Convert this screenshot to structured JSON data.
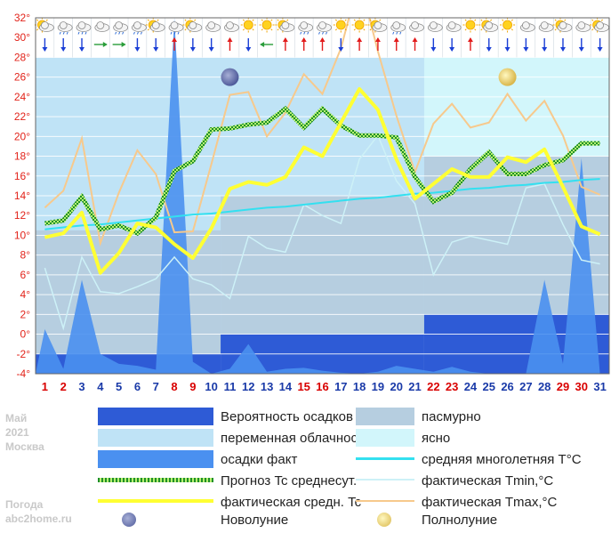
{
  "side": {
    "month": "Май",
    "year": "2021",
    "city": "Москва",
    "site_line1": "Погода",
    "site_line2": "abc2home.ru"
  },
  "colors": {
    "precip_prob": "#2e5bd6",
    "variable_cloud": "#bfe3f6",
    "precip_fact": "#4a90f0",
    "overcast": "#b6cee0",
    "clear": "#d2f6fb",
    "normal_t": "#33e0f0",
    "forecast_t": "#1f8f2a",
    "tmin_fact": "#cdf1f7",
    "tavg_fact": "#ffff33",
    "tmax_fact": "#f7c98c",
    "weekday": "#1a3aa8",
    "weekend": "#d90000"
  },
  "chart_data": {
    "type": "line",
    "ylim": [
      -4,
      32
    ],
    "yticks": [
      "-4°",
      "-2°",
      "0°",
      "2°",
      "4°",
      "6°",
      "8°",
      "10°",
      "12°",
      "14°",
      "16°",
      "18°",
      "20°",
      "22°",
      "24°",
      "26°",
      "28°",
      "30°",
      "32°"
    ],
    "days": [
      "1",
      "2",
      "3",
      "4",
      "5",
      "6",
      "7",
      "8",
      "9",
      "10",
      "11",
      "12",
      "13",
      "14",
      "15",
      "16",
      "17",
      "18",
      "19",
      "20",
      "21",
      "22",
      "23",
      "24",
      "25",
      "26",
      "27",
      "28",
      "29",
      "30",
      "31"
    ],
    "weekend_days": [
      1,
      2,
      8,
      9,
      15,
      16,
      22,
      23,
      29,
      30
    ],
    "sky_bands": [
      {
        "from": 0.5,
        "to": 10.5,
        "top": 28,
        "bottom": -2
      },
      {
        "from": 10.5,
        "to": 21.5,
        "top": 28,
        "bottom": 0
      },
      {
        "from": 21.5,
        "to": 31.5,
        "top": 28,
        "bottom": 2
      }
    ],
    "overcast_zones": [
      {
        "from": 0.5,
        "to": 10.5,
        "top": 10.5,
        "bottom": -2
      },
      {
        "from": 10.5,
        "to": 21.5,
        "top": 14,
        "bottom": 0
      },
      {
        "from": 21.5,
        "to": 31.5,
        "top": 18,
        "bottom": 2
      }
    ],
    "clear_zone": {
      "from": 21.5,
      "to": 31.5,
      "top": 28,
      "bottom": 18
    },
    "precip_prob_steps": [
      {
        "from": 0.5,
        "to": 10.5,
        "top": -2
      },
      {
        "from": 10.5,
        "to": 21.5,
        "top": 0
      },
      {
        "from": 21.5,
        "to": 31.5,
        "top": 2
      }
    ],
    "precip_fact": [
      0.5,
      -3.5,
      5.5,
      -2,
      -3,
      -3.2,
      -3.6,
      35,
      -2.8,
      -4,
      -3.5,
      -1,
      -3.8,
      -3.5,
      -3.4,
      -3.7,
      -3.9,
      -4,
      -3.8,
      -3.2,
      -3.5,
      -3.8,
      -3.3,
      -3.8,
      -4,
      -4,
      -4,
      5.5,
      -3,
      17.8,
      -4
    ],
    "series": [
      {
        "name": "Прогноз Tc среднесут.",
        "key": "forecast",
        "values": [
          11.2,
          11.5,
          13.9,
          10.6,
          11,
          10.2,
          11.8,
          16.5,
          17.5,
          20.7,
          20.8,
          21.2,
          21.4,
          22.8,
          20.9,
          22.8,
          21.1,
          20.1,
          20.1,
          19.9,
          15.9,
          13.4,
          14.3,
          16.7,
          18.4,
          16.2,
          16.2,
          17.1,
          17.6,
          19.3,
          19.3
        ]
      },
      {
        "name": "фактическая средн. Tc",
        "key": "tavg",
        "values": [
          9.8,
          10.2,
          12.3,
          6.2,
          8.2,
          11.2,
          10.8,
          9.1,
          7.7,
          10.7,
          14.7,
          15.4,
          15.1,
          15.9,
          18.9,
          18,
          21.4,
          24.8,
          22.7,
          17.7,
          13.7,
          15.2,
          16.7,
          15.9,
          15.9,
          17.9,
          17.4,
          18.7,
          14.9,
          10.9,
          10.1
        ]
      },
      {
        "name": "средняя многолетняя T°C",
        "key": "normal",
        "values": [
          10.6,
          10.8,
          11,
          11.1,
          11.3,
          11.5,
          11.7,
          11.9,
          12.1,
          12.2,
          12.4,
          12.6,
          12.8,
          12.9,
          13.1,
          13.3,
          13.5,
          13.7,
          13.8,
          14,
          14.2,
          14.3,
          14.5,
          14.7,
          14.8,
          15,
          15.1,
          15.3,
          15.4,
          15.6,
          15.7
        ]
      },
      {
        "name": "фактическая Tmin,°C",
        "key": "tmin",
        "values": [
          6.7,
          0.6,
          7.8,
          4.3,
          4.1,
          4.8,
          5.6,
          7.8,
          5.6,
          5,
          3.6,
          9.9,
          8.7,
          8.3,
          13.1,
          12,
          11.2,
          17.7,
          20.1,
          15.5,
          13.2,
          6,
          9.3,
          9.9,
          9.5,
          9.1,
          14.8,
          15.2,
          11.1,
          7.5,
          7.1
        ]
      },
      {
        "name": "фактическая Tmax,°C",
        "key": "tmax",
        "values": [
          12.8,
          14.5,
          19.8,
          9.2,
          14.3,
          18.6,
          16.2,
          10.3,
          10.4,
          17.2,
          24.2,
          24.5,
          20,
          22.4,
          26.3,
          24.3,
          28.9,
          36,
          28.6,
          22.1,
          16.4,
          21.3,
          23.3,
          20.9,
          21.4,
          24.3,
          21.6,
          23.6,
          20.1,
          14.9,
          14.1
        ]
      }
    ],
    "moon": {
      "new_moon_day": 11,
      "full_moon_day": 26
    }
  },
  "top_icons": {
    "weather": [
      "partly-cloudy",
      "rain-cloud",
      "rain-cloud",
      "cloud",
      "rain-cloud",
      "rain-cloud",
      "partly-cloudy",
      "rain-cloud",
      "partly-cloudy",
      "cloud",
      "cloud",
      "sun",
      "sun",
      "partly-cloudy",
      "rain-cloud",
      "rain-cloud",
      "sun",
      "sun",
      "partly-cloudy",
      "rain-cloud",
      "cloud",
      "cloud",
      "cloud",
      "sun",
      "partly-cloudy",
      "sun",
      "cloud",
      "cloud",
      "partly-cloudy",
      "cloud",
      "partly-cloudy"
    ],
    "wind": [
      "down",
      "down",
      "down",
      "right",
      "right",
      "down",
      "down",
      "up",
      "down",
      "down",
      "up",
      "down",
      "left",
      "up",
      "up",
      "up",
      "down",
      "up",
      "up",
      "up",
      "up",
      "down",
      "down",
      "up",
      "down",
      "down",
      "down",
      "down",
      "down",
      "down",
      "down"
    ]
  },
  "legend": [
    {
      "key": "precip_prob",
      "label": "Вероятность осадков"
    },
    {
      "key": "overcast",
      "label": "пасмурно"
    },
    {
      "key": "variable_cloud",
      "label": "переменная облачность"
    },
    {
      "key": "clear",
      "label": "ясно"
    },
    {
      "key": "precip_fact",
      "label": "осадки факт"
    },
    {
      "key": "normal_t",
      "label": "средняя многолетняя T°C"
    },
    {
      "key": "forecast_t",
      "label": "Прогноз Tc среднесут."
    },
    {
      "key": "tmin_fact",
      "label": "фактическая Tmin,°C"
    },
    {
      "key": "tavg_fact",
      "label": "фактическая средн. Tc"
    },
    {
      "key": "tmax_fact",
      "label": "фактическая Tmax,°C"
    },
    {
      "key": "new_moon",
      "label": "Новолуние"
    },
    {
      "key": "full_moon",
      "label": "Полнолуние"
    }
  ]
}
